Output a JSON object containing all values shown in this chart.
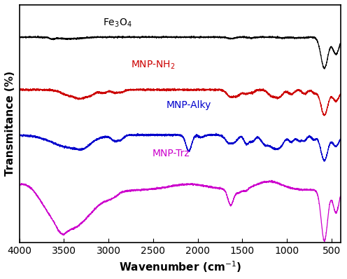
{
  "xlabel": "Wavenumber (cm$^{-1}$)",
  "ylabel": "Transmitance (%)",
  "xmin": 4000,
  "xmax": 400,
  "colors": {
    "Fe3O4": "#000000",
    "MNP_NH2": "#cc0000",
    "MNP_Alky": "#0000cc",
    "MNP_Trz": "#cc00cc"
  },
  "labels": {
    "Fe3O4": "Fe$_3$O$_4$",
    "MNP_NH2": "MNP-NH$_2$",
    "MNP_Alky": "MNP-Alky",
    "MNP_Trz": "MNP-Trz"
  },
  "background_color": "#ffffff",
  "xticks": [
    4000,
    3500,
    3000,
    2500,
    2000,
    1500,
    1000,
    500
  ],
  "figsize": [
    4.96,
    3.98
  ],
  "dpi": 100
}
